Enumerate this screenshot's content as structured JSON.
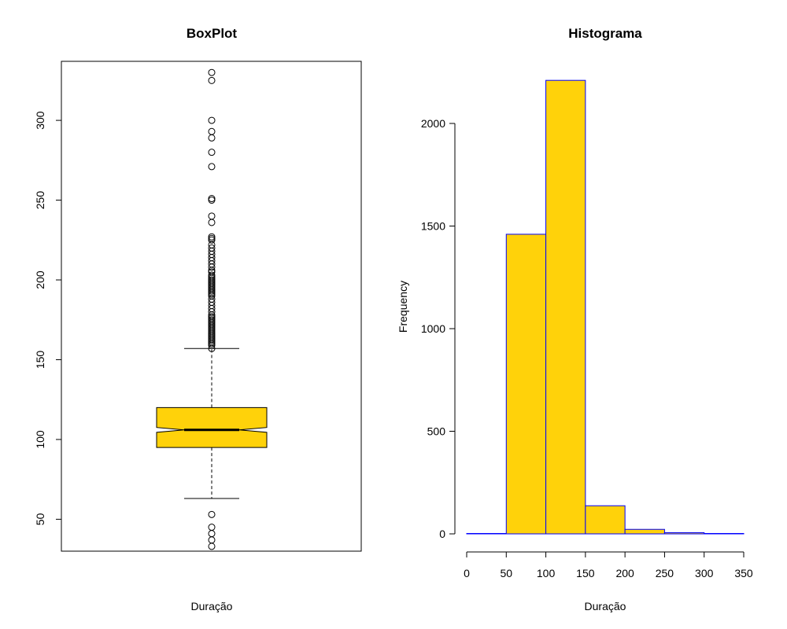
{
  "chart_data": [
    {
      "type": "box",
      "title": "BoxPlot",
      "xlabel": "Duração",
      "ylabel": "",
      "ylim": [
        30,
        337
      ],
      "yticks": [
        50,
        100,
        150,
        200,
        250,
        300
      ],
      "notch": true,
      "box": {
        "q1": 95,
        "median": 106,
        "q3": 120,
        "notch_low": 104.5,
        "notch_high": 107.5,
        "whisker_low": 63,
        "whisker_high": 157
      },
      "outliers": [
        33,
        37,
        41,
        45,
        53,
        157,
        159,
        160,
        161,
        162,
        163,
        164,
        165,
        166,
        167,
        168,
        169,
        170,
        171,
        172,
        173,
        174,
        175,
        176,
        177,
        178,
        180,
        182,
        184,
        186,
        188,
        190,
        191,
        192,
        193,
        194,
        195,
        196,
        197,
        198,
        199,
        200,
        201,
        202,
        203,
        205,
        206,
        208,
        210,
        212,
        214,
        216,
        218,
        220,
        222,
        225,
        226,
        227,
        236,
        240,
        250,
        251,
        271,
        280,
        289,
        293,
        300,
        325,
        330
      ]
    },
    {
      "type": "bar",
      "title": "Histograma",
      "xlabel": "Duração",
      "ylabel": "Frequency",
      "xlim": [
        0,
        350
      ],
      "ylim": [
        0,
        2230
      ],
      "xticks": [
        0,
        50,
        100,
        150,
        200,
        250,
        300,
        350
      ],
      "yticks": [
        0,
        500,
        1000,
        1500,
        2000
      ],
      "bins": [
        [
          0,
          50
        ],
        [
          50,
          100
        ],
        [
          100,
          150
        ],
        [
          150,
          200
        ],
        [
          200,
          250
        ],
        [
          250,
          300
        ],
        [
          300,
          350
        ]
      ],
      "values": [
        2,
        1460,
        2210,
        137,
        22,
        6,
        2
      ]
    }
  ],
  "colors": {
    "fill": "#FFD20A",
    "box_border": "#000000",
    "hist_border": "#0000FF"
  }
}
